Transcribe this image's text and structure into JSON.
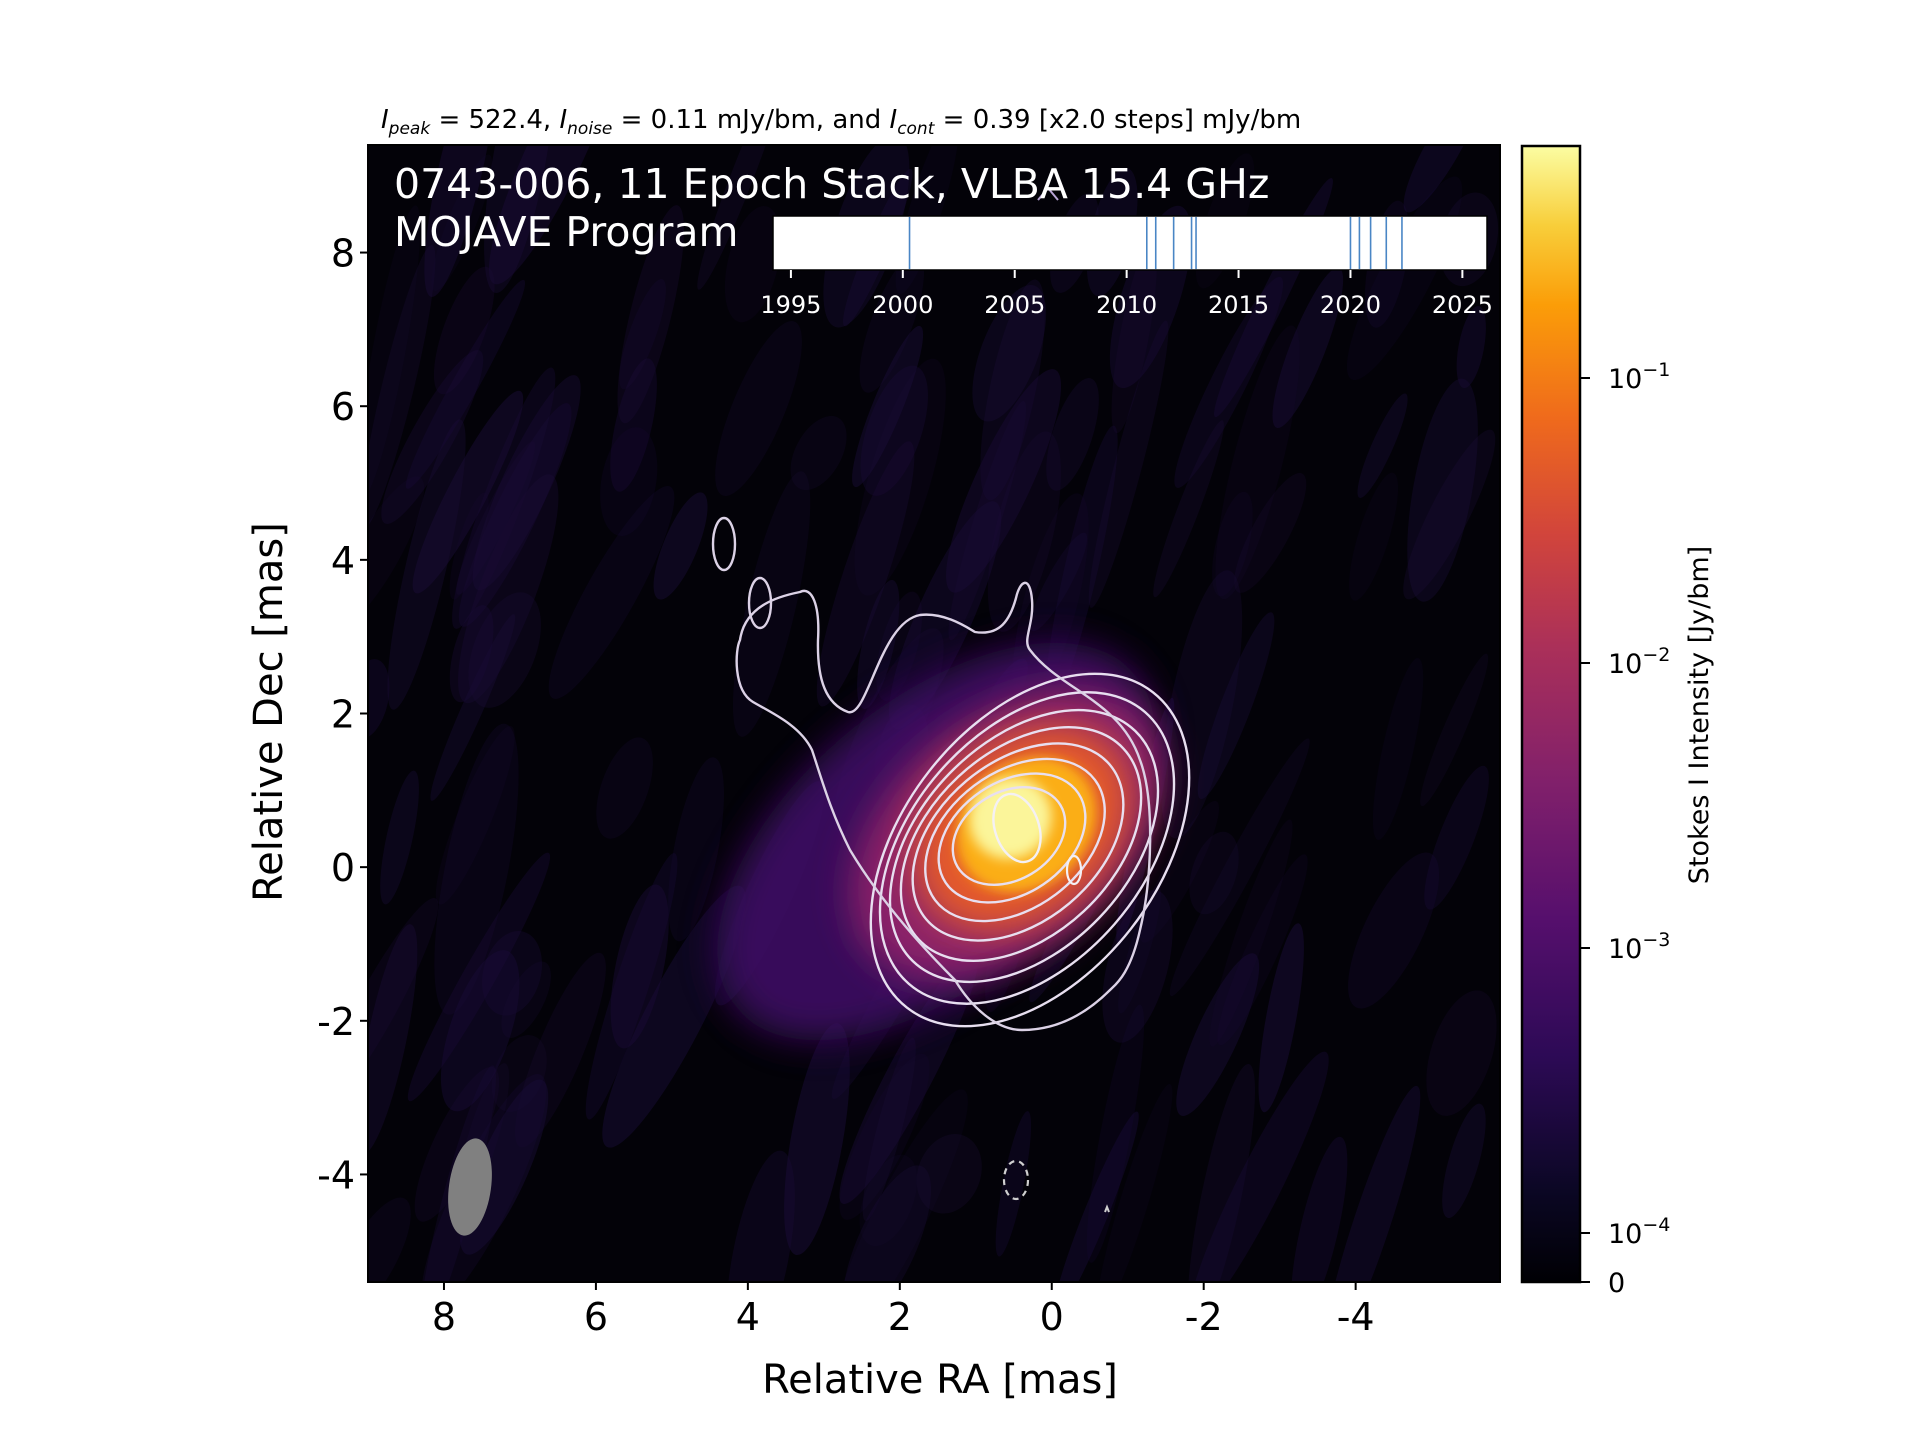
{
  "chart_data": [
    {
      "type": "heatmap",
      "header": {
        "peak_symbol": "I",
        "peak_sub": "peak",
        "peak_text": " = 522.4, ",
        "noise_symbol": "I",
        "noise_sub": "noise",
        "noise_text": " = 0.11 mJy/bm, and ",
        "cont_symbol": "I",
        "cont_sub": "cont",
        "cont_text": " = 0.39 [x2.0 steps] mJy/bm"
      },
      "title_line1": "0743-006, 11 Epoch Stack, VLBA 15.4 GHz",
      "title_line2": "MOJAVE Program",
      "xlabel": "Relative RA [mas]",
      "ylabel": "Relative Dec [mas]",
      "xlim": [
        9.0,
        -5.9
      ],
      "ylim": [
        -5.4,
        9.4
      ],
      "x_ticks": [
        8,
        6,
        4,
        2,
        0,
        -2,
        -4
      ],
      "y_ticks": [
        8,
        6,
        4,
        2,
        0,
        -2,
        -4
      ],
      "background": "#030208",
      "contour_levels_mJy_per_bm": [
        0.39,
        0.78,
        1.56,
        3.12,
        6.24,
        12.48,
        24.96,
        49.92,
        99.84,
        199.68,
        399.36
      ],
      "negative_contour": {
        "ra": 0.75,
        "dec": -4.0,
        "style": "dashed"
      },
      "beam": {
        "ra": 7.8,
        "dec": -4.1,
        "color": "#808080"
      },
      "components": [
        {
          "ra": 0.75,
          "dec": 0.6,
          "flux_Jy_per_bm": 0.5224
        },
        {
          "ra": 0.05,
          "dec": 0.0,
          "flux_Jy_per_bm": 0.4
        }
      ],
      "colorbar": {
        "label": "Stokes I Intensity [Jy/bm]",
        "cmap": "inferno",
        "ticks": [
          {
            "value": 0.1,
            "label": "10",
            "exp": "−1"
          },
          {
            "value": 0.01,
            "label": "10",
            "exp": "−2"
          },
          {
            "value": 0.001,
            "label": "10",
            "exp": "−3"
          },
          {
            "value": 0.0001,
            "label": "10",
            "exp": "−4"
          },
          {
            "value": 0,
            "label": "0",
            "exp": ""
          }
        ]
      }
    },
    {
      "type": "timeline",
      "x_ticks": [
        1995,
        2000,
        2005,
        2010,
        2015,
        2020,
        2025
      ],
      "xlim": [
        1994.2,
        2026.1
      ],
      "epochs": [
        2000.3,
        2010.9,
        2011.3,
        2012.1,
        2012.9,
        2013.1,
        2020.0,
        2020.4,
        2020.9,
        2021.6,
        2022.3
      ],
      "line_color": "#4a86c5"
    }
  ]
}
